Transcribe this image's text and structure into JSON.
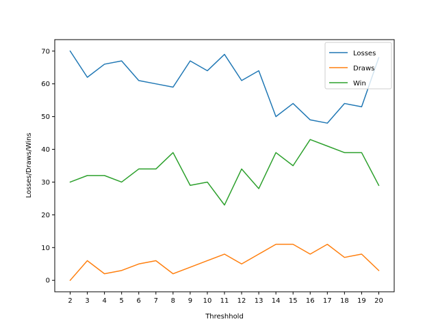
{
  "chart_data": {
    "type": "line",
    "xlabel": "Threshhold",
    "ylabel": "Losses/Draws/Wins",
    "x": [
      2,
      3,
      4,
      5,
      6,
      7,
      8,
      9,
      10,
      11,
      12,
      13,
      14,
      15,
      16,
      17,
      18,
      19,
      20
    ],
    "xlim": [
      1.1,
      20.9
    ],
    "ylim": [
      -3.5,
      73.5
    ],
    "yticks": [
      0,
      10,
      20,
      30,
      40,
      50,
      60,
      70
    ],
    "grid": false,
    "legend_position": "top-right",
    "series": [
      {
        "name": "Losses",
        "color": "#1f77b4",
        "values": [
          70,
          62,
          66,
          67,
          61,
          60,
          59,
          67,
          64,
          69,
          61,
          64,
          50,
          54,
          49,
          48,
          54,
          53,
          68
        ]
      },
      {
        "name": "Draws",
        "color": "#ff7f0e",
        "values": [
          0,
          6,
          2,
          3,
          5,
          6,
          2,
          4,
          6,
          8,
          5,
          8,
          11,
          11,
          8,
          11,
          7,
          8,
          3
        ]
      },
      {
        "name": "Win",
        "color": "#2ca02c",
        "values": [
          30,
          32,
          32,
          30,
          34,
          34,
          39,
          29,
          30,
          23,
          34,
          28,
          39,
          35,
          43,
          41,
          39,
          39,
          29
        ]
      }
    ]
  }
}
